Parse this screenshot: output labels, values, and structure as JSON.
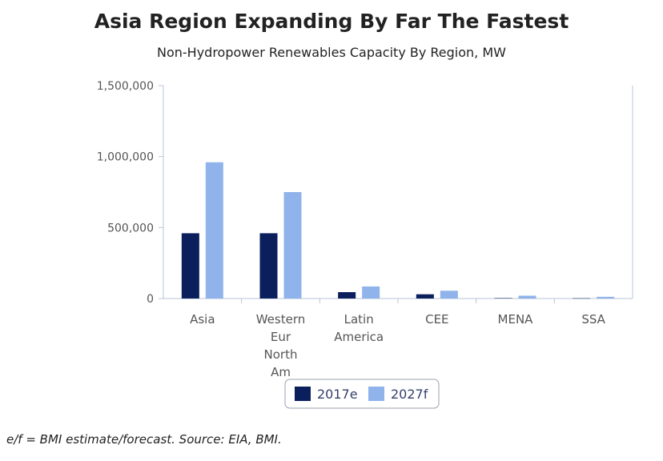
{
  "header": {
    "title": "Asia Region Expanding By Far The Fastest",
    "subtitle": "Non-Hydropower Renewables Capacity By Region, MW"
  },
  "footnote": "e/f = BMI estimate/forecast. Source: EIA, BMI.",
  "colors": {
    "series_2017": "#0a1f5c",
    "series_2027": "#8fb3ea",
    "axis": "#b8c4d6",
    "tick_text": "#555555"
  },
  "chart_data": {
    "type": "bar",
    "categories": [
      [
        "Asia"
      ],
      [
        "Western",
        "Eur",
        "North",
        "Am"
      ],
      [
        "Latin",
        "America"
      ],
      [
        "CEE"
      ],
      [
        "MENA"
      ],
      [
        "SSA"
      ]
    ],
    "series": [
      {
        "name": "2017e",
        "values": [
          460000,
          460000,
          45000,
          30000,
          3000,
          2000
        ]
      },
      {
        "name": "2027f",
        "values": [
          960000,
          750000,
          85000,
          55000,
          20000,
          12000
        ]
      }
    ],
    "ylim": [
      0,
      1500000
    ],
    "yticks": [
      "0",
      "500,000",
      "1,000,000",
      "1,500,000"
    ],
    "ytick_values": [
      0,
      500000,
      1000000,
      1500000
    ],
    "grid": false,
    "legend_placement": "bottom"
  }
}
